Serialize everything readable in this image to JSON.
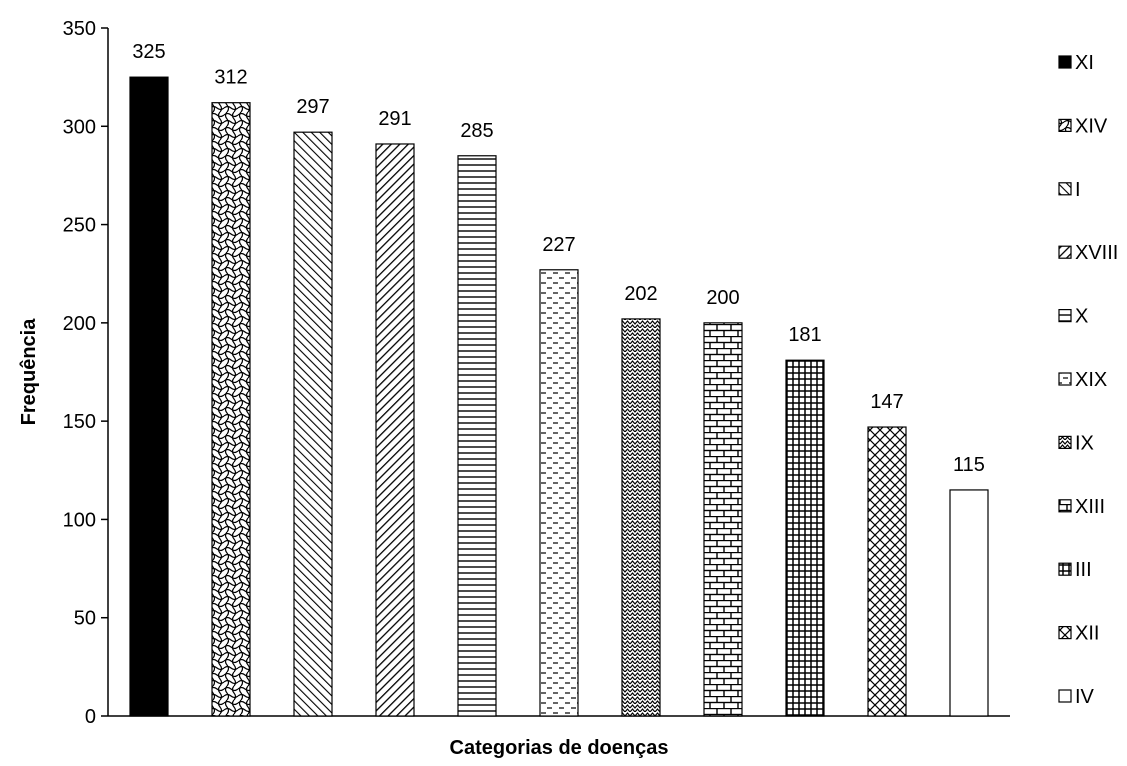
{
  "chart_data": {
    "type": "bar",
    "title": "",
    "xlabel": "Categorias de doenças",
    "ylabel": "Frequência",
    "ylim": [
      0,
      350
    ],
    "yticks": [
      0,
      50,
      100,
      150,
      200,
      250,
      300,
      350
    ],
    "grid": false,
    "legend_position": "right",
    "series": [
      {
        "name": "XI",
        "value": 325,
        "pattern": "solid"
      },
      {
        "name": "XIV",
        "value": 312,
        "pattern": "wave"
      },
      {
        "name": "I",
        "value": 297,
        "pattern": "diag-down"
      },
      {
        "name": "XVIII",
        "value": 291,
        "pattern": "diag-up"
      },
      {
        "name": "X",
        "value": 285,
        "pattern": "horizontal"
      },
      {
        "name": "XIX",
        "value": 227,
        "pattern": "dashed"
      },
      {
        "name": "IX",
        "value": 202,
        "pattern": "zigzag"
      },
      {
        "name": "XIII",
        "value": 200,
        "pattern": "brick"
      },
      {
        "name": "III",
        "value": 181,
        "pattern": "grid"
      },
      {
        "name": "XII",
        "value": 147,
        "pattern": "diamond"
      },
      {
        "name": "IV",
        "value": 115,
        "pattern": "none"
      }
    ]
  }
}
